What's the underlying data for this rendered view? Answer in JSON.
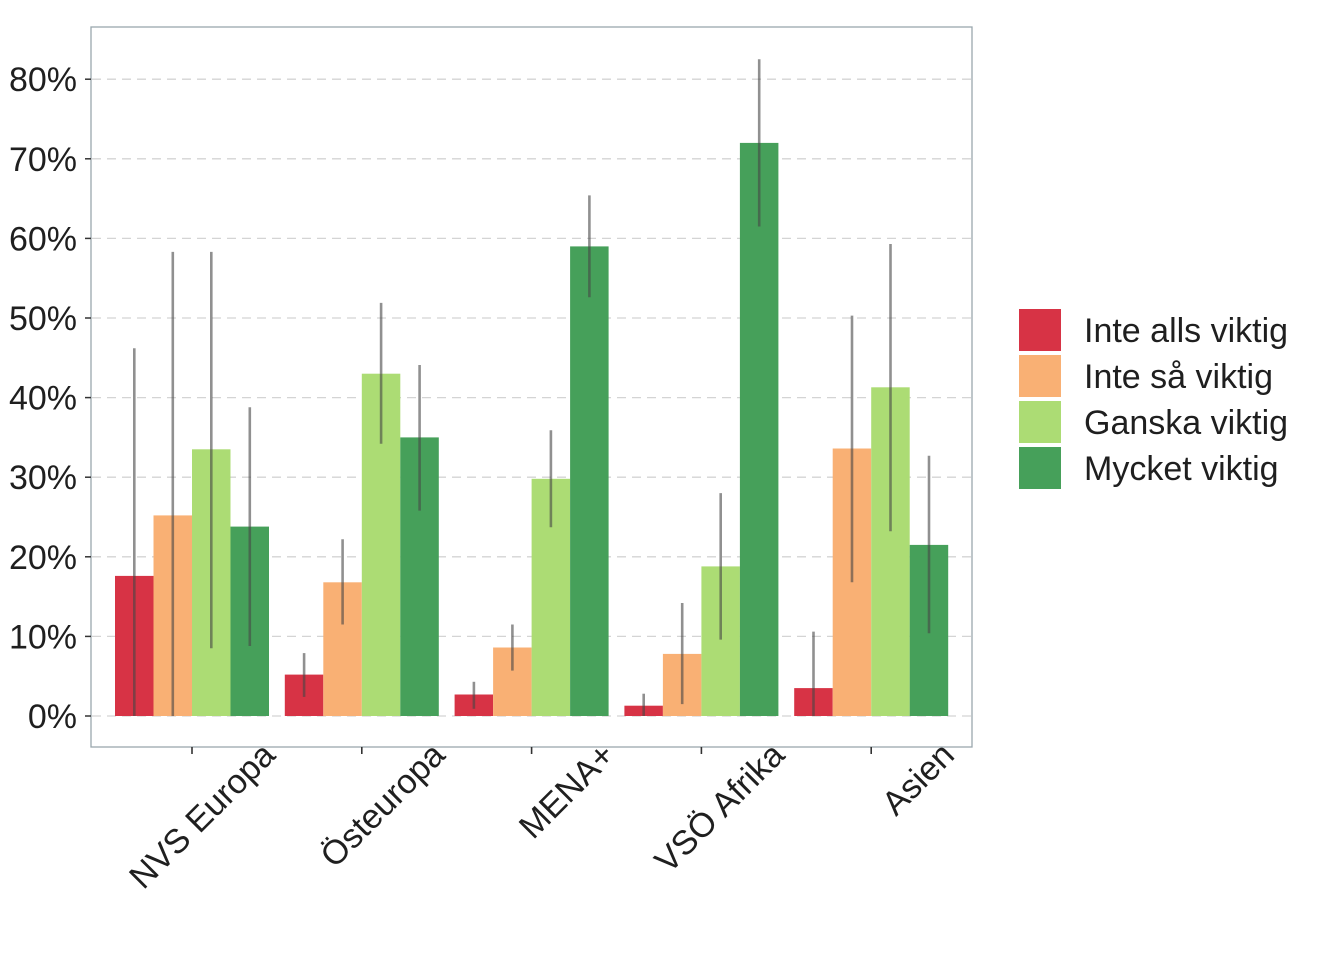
{
  "chart_data": {
    "type": "bar",
    "title": "",
    "xlabel": "",
    "ylabel": "",
    "categories": [
      "NVS Europa",
      "Östeuropa",
      "MENA+",
      "VSÖ Afrika",
      "Asien"
    ],
    "ylim": [
      0,
      0.86
    ],
    "yticks": [
      0,
      0.1,
      0.2,
      0.3,
      0.4,
      0.5,
      0.6,
      0.7,
      0.8
    ],
    "ytick_labels": [
      "0%",
      "10%",
      "20%",
      "30%",
      "40%",
      "50%",
      "60%",
      "70%",
      "80%"
    ],
    "grid": "horizontal dashed",
    "legend_position": "right",
    "error_bars": true,
    "series": [
      {
        "name": "Inte alls viktig",
        "color": "#d73345",
        "values": [
          0.176,
          0.052,
          0.027,
          0.013,
          0.035
        ],
        "err_low": [
          0.0,
          0.024,
          0.009,
          0.0,
          0.0
        ],
        "err_high": [
          0.462,
          0.079,
          0.043,
          0.028,
          0.106
        ]
      },
      {
        "name": "Inte så viktig",
        "color": "#f9b074",
        "values": [
          0.252,
          0.168,
          0.086,
          0.078,
          0.336
        ],
        "err_low": [
          0.0,
          0.115,
          0.057,
          0.015,
          0.168
        ],
        "err_high": [
          0.583,
          0.222,
          0.115,
          0.142,
          0.503
        ]
      },
      {
        "name": "Ganska viktig",
        "color": "#acdc74",
        "values": [
          0.335,
          0.43,
          0.298,
          0.188,
          0.413
        ],
        "err_low": [
          0.085,
          0.342,
          0.237,
          0.096,
          0.232
        ],
        "err_high": [
          0.583,
          0.519,
          0.359,
          0.28,
          0.593
        ]
      },
      {
        "name": "Mycket viktig",
        "color": "#46a05a",
        "values": [
          0.238,
          0.35,
          0.59,
          0.72,
          0.215
        ],
        "err_low": [
          0.088,
          0.258,
          0.526,
          0.615,
          0.104
        ],
        "err_high": [
          0.388,
          0.441,
          0.654,
          0.825,
          0.327
        ]
      }
    ]
  }
}
